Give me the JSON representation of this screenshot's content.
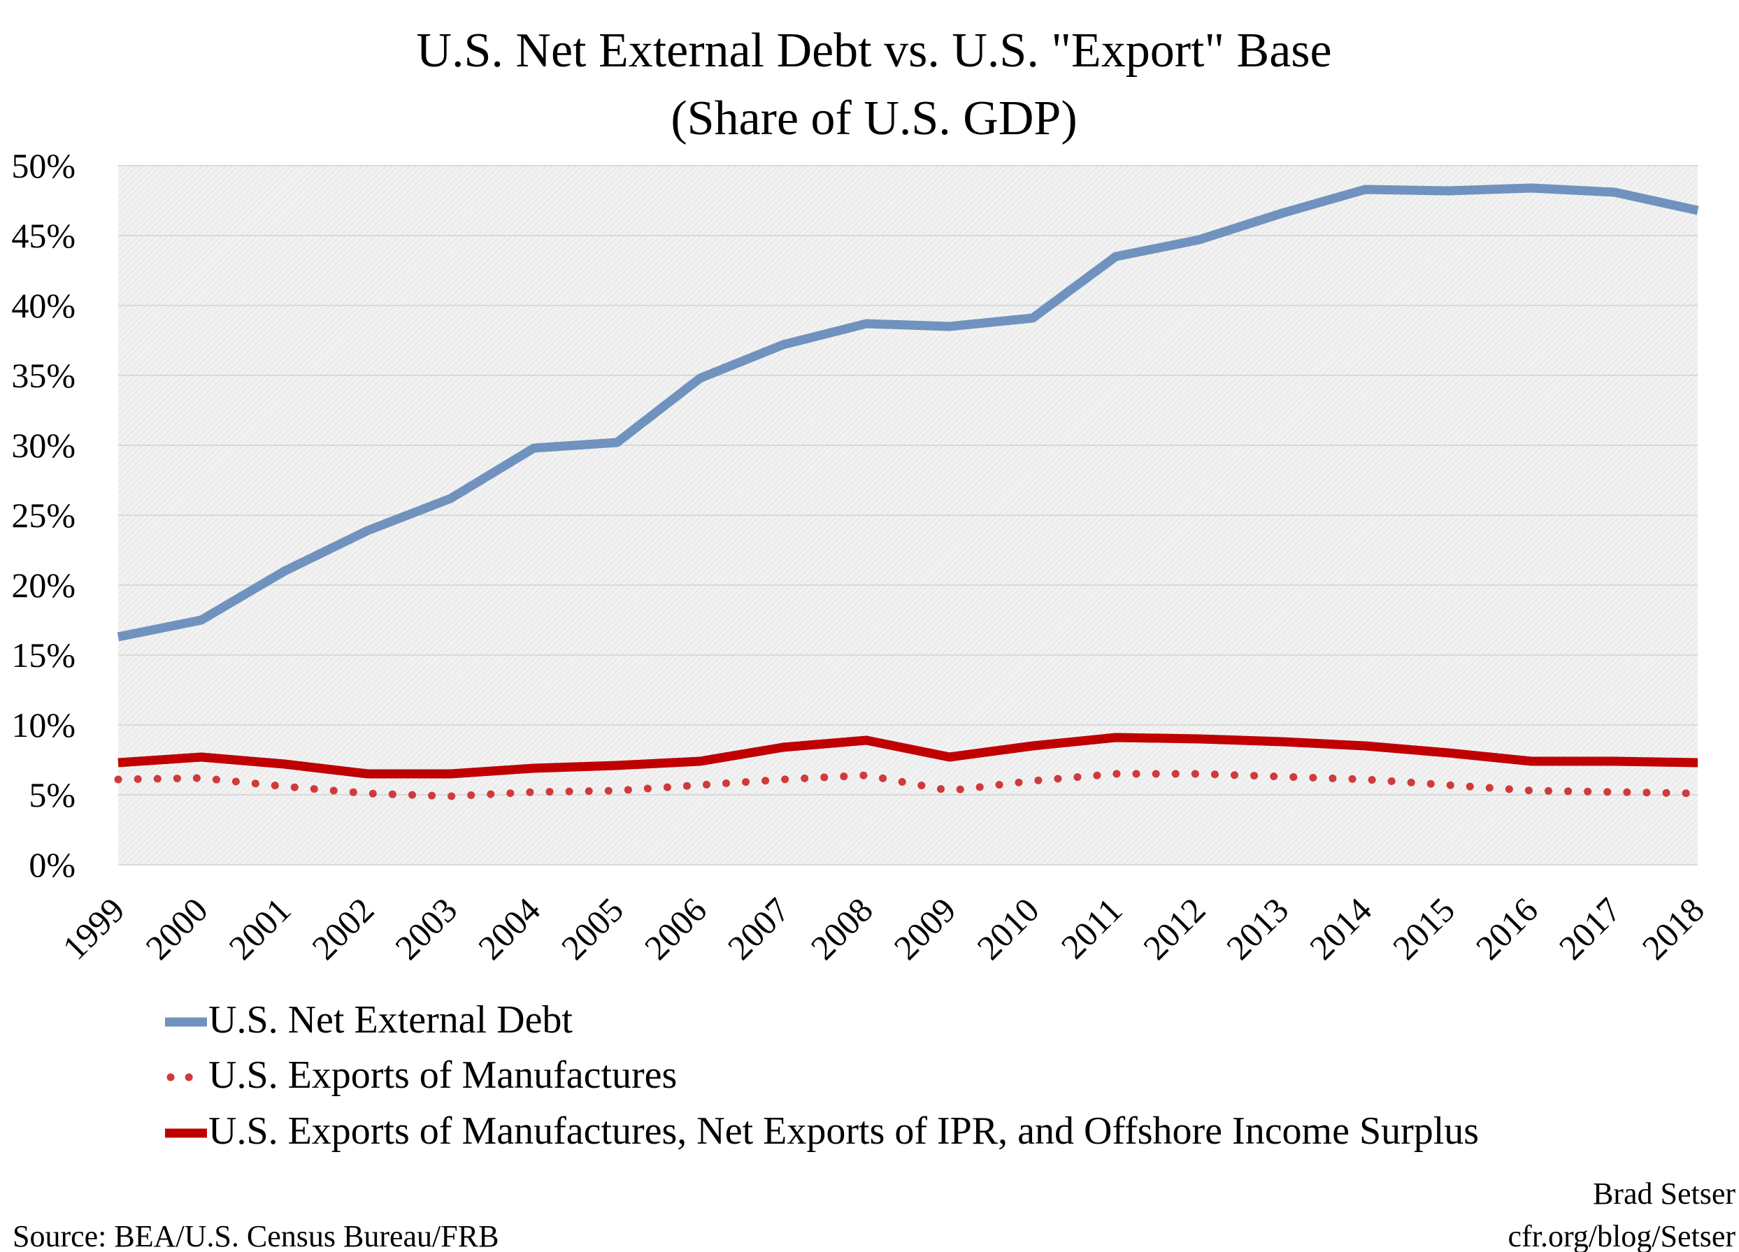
{
  "chart_data": {
    "type": "line",
    "title": "U.S. Net External Debt vs. U.S. \"Export\" Base",
    "subtitle": "(Share of U.S. GDP)",
    "xlabel": "",
    "ylabel": "",
    "ylim": [
      0,
      50
    ],
    "yticks": [
      "0%",
      "5%",
      "10%",
      "15%",
      "20%",
      "25%",
      "30%",
      "35%",
      "40%",
      "45%",
      "50%"
    ],
    "ytick_values": [
      0,
      5,
      10,
      15,
      20,
      25,
      30,
      35,
      40,
      45,
      50
    ],
    "grid": true,
    "legend_position": "bottom",
    "x": [
      "1999",
      "2000",
      "2001",
      "2002",
      "2003",
      "2004",
      "2005",
      "2006",
      "2007",
      "2008",
      "2009",
      "2010",
      "2011",
      "2012",
      "2013",
      "2014",
      "2015",
      "2016",
      "2017",
      "2018"
    ],
    "series": [
      {
        "name": "U.S. Net External Debt",
        "color": "#7092BE",
        "style": "solid",
        "values": [
          16.3,
          17.5,
          21.0,
          23.9,
          26.2,
          29.8,
          30.2,
          34.8,
          37.2,
          38.7,
          38.5,
          39.1,
          43.5,
          44.7,
          46.6,
          48.3,
          48.2,
          48.4,
          48.1,
          46.8
        ]
      },
      {
        "name": "U.S. Exports of Manufactures",
        "color": "#D03A3A",
        "style": "dotted",
        "values": [
          6.1,
          6.2,
          5.6,
          5.1,
          4.9,
          5.2,
          5.3,
          5.7,
          6.1,
          6.4,
          5.3,
          6.0,
          6.5,
          6.5,
          6.3,
          6.1,
          5.7,
          5.3,
          5.2,
          5.1
        ]
      },
      {
        "name": "U.S. Exports of Manufactures, Net Exports of IPR, and Offshore Income Surplus",
        "color": "#C00000",
        "style": "solid",
        "values": [
          7.3,
          7.7,
          7.2,
          6.5,
          6.5,
          6.9,
          7.1,
          7.4,
          8.4,
          8.9,
          7.7,
          8.5,
          9.1,
          9.0,
          8.8,
          8.5,
          8.0,
          7.4,
          7.4,
          7.3
        ]
      }
    ]
  },
  "source": "Source: BEA/U.S. Census Bureau/FRB",
  "author": "Brad Setser",
  "site": "cfr.org/blog/Setser"
}
